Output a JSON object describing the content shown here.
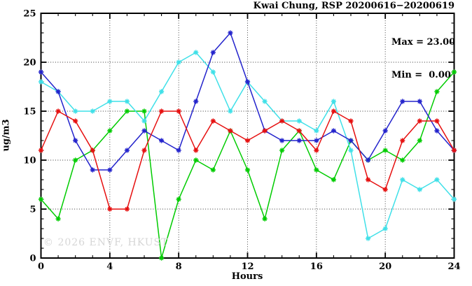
{
  "title": "Kwai Chung, RSP 20200616−20200619",
  "stats": {
    "max_label": "Max = 23.00",
    "min_label": "Min =  0.00"
  },
  "watermark": "© 2026 ENVF, HKUST",
  "chart_data": {
    "type": "line",
    "title": "Kwai Chung, RSP 20200616−20200619",
    "xlabel": "Hours",
    "ylabel": "ug/m3",
    "xlim": [
      0,
      24
    ],
    "ylim": [
      0,
      25
    ],
    "xticks": [
      0,
      4,
      8,
      12,
      16,
      20,
      24
    ],
    "yticks": [
      0,
      5,
      10,
      15,
      20,
      25
    ],
    "grid": {
      "vertical_at": [
        4,
        8,
        12,
        16,
        20
      ],
      "horizontal_at": [
        5,
        10,
        15,
        20
      ],
      "style": "dotted"
    },
    "legend": "none",
    "max": 23.0,
    "min": 0.0,
    "x": [
      0,
      1,
      2,
      3,
      4,
      5,
      6,
      7,
      8,
      9,
      10,
      11,
      12,
      13,
      14,
      15,
      16,
      17,
      18,
      19,
      20,
      21,
      22,
      23,
      24
    ],
    "series": [
      {
        "name": "green-series",
        "color": "#00cc00",
        "values": [
          6,
          4,
          10,
          11,
          13,
          15,
          15,
          0,
          6,
          10,
          9,
          13,
          9,
          4,
          11,
          13,
          9,
          8,
          12,
          10,
          11,
          10,
          12,
          17,
          19
        ]
      },
      {
        "name": "cyan-series",
        "color": "#3fe0e8",
        "values": [
          18,
          17,
          15,
          15,
          16,
          16,
          14,
          17,
          20,
          21,
          19,
          15,
          18,
          16,
          14,
          14,
          13,
          16,
          11,
          2,
          3,
          8,
          7,
          8,
          6
        ]
      },
      {
        "name": "blue-series",
        "color": "#2323cc",
        "values": [
          19,
          17,
          12,
          9,
          9,
          11,
          13,
          12,
          11,
          16,
          21,
          23,
          18,
          13,
          12,
          12,
          12,
          13,
          12,
          10,
          13,
          16,
          16,
          13,
          11
        ]
      },
      {
        "name": "red-series",
        "color": "#e60f0f",
        "values": [
          11,
          15,
          14,
          11,
          5,
          5,
          11,
          15,
          15,
          11,
          14,
          13,
          12,
          13,
          14,
          13,
          11,
          15,
          14,
          8,
          7,
          12,
          14,
          14,
          11
        ]
      }
    ]
  }
}
